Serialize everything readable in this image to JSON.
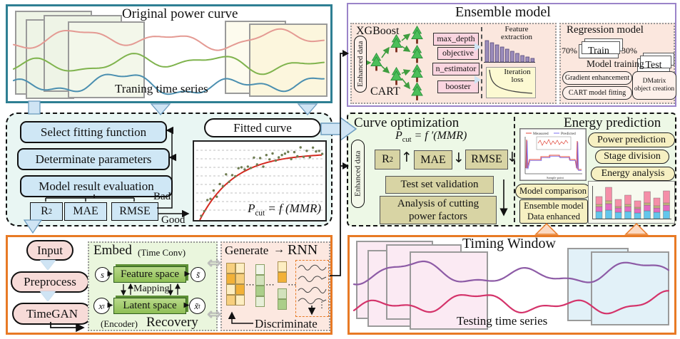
{
  "colors": {
    "teal_border": "#2e7f93",
    "purple_border": "#9b84c9",
    "orange_border": "#e87a25",
    "panel_blue_bg": "#e9f6f3",
    "panel_green_bg": "#edf8e6",
    "salmon_bg": "#fbe7de",
    "box_blue": "#cfe7f5",
    "box_olive": "#d8d4a4",
    "pill_yellow": "#f6f0c2",
    "fitted_curve_red": "#d42a20"
  },
  "icons": {
    "double_arrow": "⇔",
    "right_arrow": "→",
    "dots": "⋯",
    "vdots": "⋮"
  },
  "original": {
    "title": "Original power curve",
    "caption": "Traning time series"
  },
  "ensemble": {
    "title": "Ensemble model",
    "xgboost_label": "XGBoost",
    "cart_label": "CART",
    "input_label": "Enhanced data",
    "params": [
      "max_depth",
      "objective",
      "n_estimator",
      "booster"
    ],
    "feature_chart": {
      "title_line1": "Feature",
      "title_line2": "extraction",
      "bars": [
        30,
        27,
        24,
        21,
        18,
        15,
        12,
        9,
        7,
        5
      ]
    },
    "loss_chart": {
      "title_line1": "Iteration",
      "title_line2": "loss"
    },
    "regression": {
      "title": "Regression model",
      "train_pct": "70%",
      "train_label": "Train",
      "test_pct": "30%",
      "test_label": "Test",
      "subtitle": "Model training",
      "step1": "Gradient enhancement",
      "step2": "CART model fitting",
      "dmatrix_line1": "DMatrix",
      "dmatrix_line2": "object creation"
    }
  },
  "fitting": {
    "step1": "Select fitting function",
    "step2": "Determinate parameters",
    "step3": "Model result evaluation",
    "metric1_base": "R",
    "metric1_sup": "2",
    "metric2": "MAE",
    "metric3": "RMSE",
    "bad": "Bad",
    "good": "Good",
    "fitted_title": "Fitted curve",
    "formula_lhs": "P",
    "formula_sub": "cut",
    "formula_rhs": "= f (MMR)"
  },
  "curveopt": {
    "title": "Curve optimization",
    "input_label": "Enhanced data",
    "formula_lhs": "P",
    "formula_sub": "cut",
    "formula_rhs": "= f ′(MMR)",
    "metric1_base": "R",
    "metric1_sup": "2",
    "metric1_arrow": "↑",
    "metric2": "MAE",
    "metric2_arrow": "↓",
    "metric3": "RMSE",
    "metric3_arrow": "↓",
    "validation": "Test set validation",
    "analysis_line1": "Analysis of cutting",
    "analysis_line2": "power factors"
  },
  "energy": {
    "title": "Energy prediction",
    "pill1": "Power prediction",
    "pill2": "Stage division",
    "pill3": "Energy analysis",
    "comparison": "Model comparison",
    "box_line1": "Ensemble model",
    "box_line2": "Data enhanced",
    "legend_measured": "Measured",
    "legend_predicted": "Predicted",
    "xlabel": "Sample point",
    "bar_chart": {
      "bars": [
        [
          10,
          7,
          3,
          11
        ],
        [
          12,
          9,
          4,
          19
        ],
        [
          9,
          6,
          2,
          10
        ],
        [
          10,
          7,
          3,
          13
        ],
        [
          8,
          6,
          2,
          9
        ],
        [
          11,
          8,
          3,
          16
        ],
        [
          9,
          6,
          3,
          11
        ],
        [
          11,
          8,
          3,
          17
        ]
      ],
      "colors": [
        "#62c6ec",
        "#e36cc0",
        "#c9b97e",
        "#f58fa8"
      ]
    }
  },
  "timegan": {
    "step1": "Input",
    "step2": "Preprocess",
    "step3": "TimeGAN",
    "embed_title": "Embed",
    "embed_subtitle": "(Time Conv)",
    "s_label": "s",
    "s_out_label": "s̃",
    "x_label": "x",
    "x_sub": "t",
    "x_out_label": "x̃",
    "feature_space": "Feature space",
    "mapping": "Mapping",
    "latent_space": "Latent space",
    "encoder": "(Encoder)",
    "recovery": "Recovery",
    "generate": "Generate",
    "rnn": "RNN",
    "discriminate": "Discriminate"
  },
  "timing": {
    "title": "Timing Window",
    "caption": "Testing time series"
  }
}
